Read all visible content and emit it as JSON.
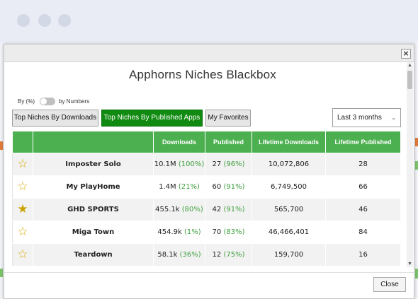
{
  "modal": {
    "title": "Apphorns Niches Blackbox",
    "close_icon": "close-icon",
    "close_symbol": "×",
    "close_button": "Close"
  },
  "toggle": {
    "left_label": "By (%)",
    "right_label": "by Numbers",
    "state": "by-percent"
  },
  "buttons": {
    "downloads": "Top Niches By Downloads",
    "published": "Top Niches By Published Apps",
    "favorites": "My Favorites",
    "active": "published"
  },
  "period": {
    "selected": "Last 3 months",
    "icon": "chevron-down-icon"
  },
  "table": {
    "headers": [
      "",
      "",
      "Downloads",
      "Published",
      "Lifetime Downloads",
      "Lifetime Published"
    ],
    "rows": [
      {
        "favorite": false,
        "name": "Imposter Solo",
        "downloads": "10.1M",
        "downloads_pct": "(100%)",
        "published": "27",
        "published_pct": "(96%)",
        "lifetime_downloads": "10,072,806",
        "lifetime_published": "28"
      },
      {
        "favorite": false,
        "name": "My PlayHome",
        "downloads": "1.4M",
        "downloads_pct": "(21%)",
        "published": "60",
        "published_pct": "(91%)",
        "lifetime_downloads": "6,749,500",
        "lifetime_published": "66"
      },
      {
        "favorite": true,
        "name": "GHD SPORTS",
        "downloads": "455.1k",
        "downloads_pct": "(80%)",
        "published": "42",
        "published_pct": "(91%)",
        "lifetime_downloads": "565,700",
        "lifetime_published": "46"
      },
      {
        "favorite": false,
        "name": "Miga Town",
        "downloads": "454.9k",
        "downloads_pct": "(1%)",
        "published": "70",
        "published_pct": "(83%)",
        "lifetime_downloads": "46,466,401",
        "lifetime_published": "84"
      },
      {
        "favorite": false,
        "name": "Teardown",
        "downloads": "58.1k",
        "downloads_pct": "(36%)",
        "published": "12",
        "published_pct": "(75%)",
        "lifetime_downloads": "159,700",
        "lifetime_published": "16"
      }
    ]
  },
  "colors": {
    "accent_green": "#4caf50",
    "active_button": "#108a10",
    "percent_green": "#3f9f3f",
    "star_gold": "#d6a900"
  },
  "icons": {
    "star_empty": "☆",
    "star_filled": "★",
    "chevron": "⌄",
    "scroll_up": "▲",
    "scroll_down": "▼"
  }
}
